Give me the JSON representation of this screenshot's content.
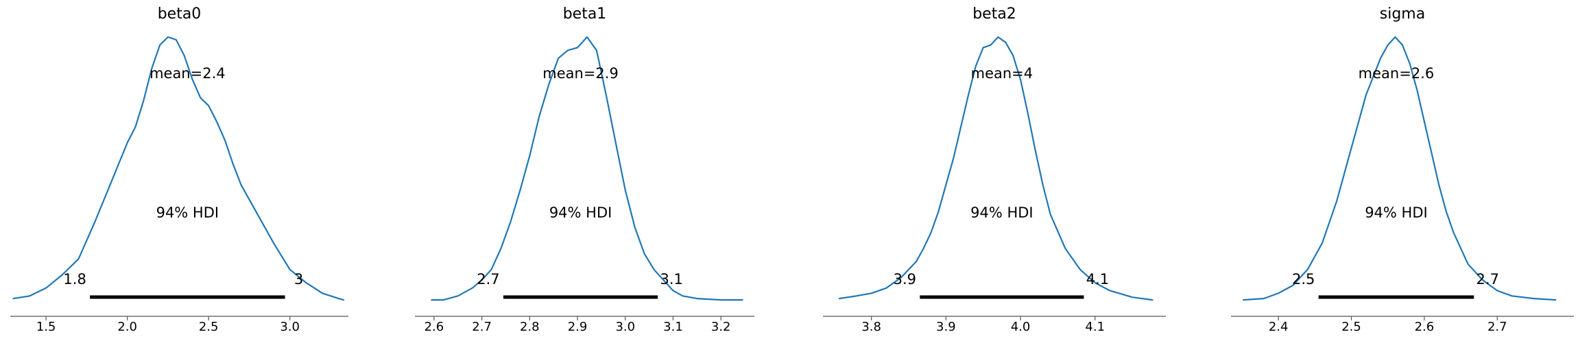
{
  "figure": {
    "hdi_label": "94% HDI"
  },
  "colors": {
    "kde_line": "#1f77b4",
    "hdi_bar": "#000000",
    "axis": "#555555",
    "text": "#000000"
  },
  "chart_data": [
    {
      "type": "line",
      "title": "beta0",
      "xlim": [
        1.28,
        3.36
      ],
      "xticks": [
        1.5,
        2.0,
        2.5,
        3.0
      ],
      "xtick_labels": [
        "1.5",
        "2.0",
        "2.5",
        "3.0"
      ],
      "mean_label": "mean=2.4",
      "hdi": {
        "label": "94% HDI",
        "low": 1.77,
        "high": 2.97,
        "low_label": "1.8",
        "high_label": "3"
      },
      "density": {
        "x": [
          1.3,
          1.4,
          1.5,
          1.6,
          1.7,
          1.8,
          1.9,
          2.0,
          2.05,
          2.1,
          2.15,
          2.2,
          2.25,
          2.3,
          2.35,
          2.4,
          2.45,
          2.5,
          2.55,
          2.6,
          2.65,
          2.7,
          2.8,
          2.9,
          3.0,
          3.1,
          3.2,
          3.3,
          3.33
        ],
        "y": [
          0.01,
          0.02,
          0.05,
          0.1,
          0.16,
          0.3,
          0.45,
          0.6,
          0.66,
          0.76,
          0.88,
          0.97,
          1.0,
          0.99,
          0.93,
          0.84,
          0.77,
          0.74,
          0.68,
          0.61,
          0.52,
          0.44,
          0.33,
          0.22,
          0.12,
          0.07,
          0.03,
          0.01,
          0.005
        ]
      }
    },
    {
      "type": "line",
      "title": "beta1",
      "xlim": [
        2.56,
        3.27
      ],
      "xticks": [
        2.6,
        2.7,
        2.8,
        2.9,
        3.0,
        3.1,
        3.2
      ],
      "xtick_labels": [
        "2.6",
        "2.7",
        "2.8",
        "2.9",
        "3.0",
        "3.1",
        "3.2"
      ],
      "mean_label": "mean=2.9",
      "hdi": {
        "label": "94% HDI",
        "low": 2.745,
        "high": 3.068,
        "low_label": "2.7",
        "high_label": "3.1"
      },
      "density": {
        "x": [
          2.595,
          2.62,
          2.65,
          2.68,
          2.7,
          2.72,
          2.74,
          2.76,
          2.78,
          2.8,
          2.82,
          2.84,
          2.86,
          2.88,
          2.9,
          2.92,
          2.94,
          2.96,
          2.98,
          3.0,
          3.02,
          3.04,
          3.06,
          3.08,
          3.1,
          3.12,
          3.15,
          3.2,
          3.245
        ],
        "y": [
          0.005,
          0.005,
          0.02,
          0.05,
          0.08,
          0.12,
          0.2,
          0.3,
          0.42,
          0.55,
          0.7,
          0.82,
          0.92,
          0.95,
          0.96,
          1.0,
          0.95,
          0.78,
          0.6,
          0.42,
          0.28,
          0.18,
          0.12,
          0.08,
          0.04,
          0.02,
          0.01,
          0.005,
          0.005
        ]
      }
    },
    {
      "type": "line",
      "title": "beta2",
      "xlim": [
        3.735,
        4.195
      ],
      "xticks": [
        3.8,
        3.9,
        4.0,
        4.1
      ],
      "xtick_labels": [
        "3.8",
        "3.9",
        "4.0",
        "4.1"
      ],
      "mean_label": "mean=4",
      "hdi": {
        "label": "94% HDI",
        "low": 3.865,
        "high": 4.085,
        "low_label": "3.9",
        "high_label": "4.1"
      },
      "density": {
        "x": [
          3.757,
          3.78,
          3.8,
          3.82,
          3.84,
          3.86,
          3.87,
          3.88,
          3.89,
          3.9,
          3.91,
          3.92,
          3.93,
          3.94,
          3.95,
          3.96,
          3.97,
          3.98,
          3.99,
          4.0,
          4.01,
          4.02,
          4.03,
          4.04,
          4.06,
          4.08,
          4.1,
          4.12,
          4.15,
          4.177
        ],
        "y": [
          0.01,
          0.02,
          0.03,
          0.05,
          0.09,
          0.15,
          0.2,
          0.26,
          0.34,
          0.44,
          0.54,
          0.66,
          0.78,
          0.89,
          0.96,
          0.97,
          1.0,
          0.98,
          0.93,
          0.84,
          0.71,
          0.57,
          0.44,
          0.33,
          0.2,
          0.12,
          0.07,
          0.04,
          0.015,
          0.005
        ]
      }
    },
    {
      "type": "line",
      "title": "sigma",
      "xlim": [
        2.335,
        2.805
      ],
      "xticks": [
        2.4,
        2.5,
        2.6,
        2.7
      ],
      "xtick_labels": [
        "2.4",
        "2.5",
        "2.6",
        "2.7"
      ],
      "mean_label": "mean=2.6",
      "hdi": {
        "label": "94% HDI",
        "low": 2.455,
        "high": 2.668,
        "low_label": "2.5",
        "high_label": "2.7"
      },
      "density": {
        "x": [
          2.352,
          2.38,
          2.4,
          2.42,
          2.44,
          2.46,
          2.48,
          2.49,
          2.5,
          2.51,
          2.52,
          2.53,
          2.54,
          2.55,
          2.56,
          2.57,
          2.58,
          2.59,
          2.6,
          2.61,
          2.62,
          2.63,
          2.64,
          2.66,
          2.68,
          2.7,
          2.72,
          2.75,
          2.78
        ],
        "y": [
          0.005,
          0.01,
          0.03,
          0.06,
          0.12,
          0.22,
          0.38,
          0.48,
          0.58,
          0.68,
          0.78,
          0.85,
          0.92,
          0.97,
          1.0,
          0.97,
          0.9,
          0.8,
          0.68,
          0.56,
          0.44,
          0.34,
          0.26,
          0.14,
          0.08,
          0.04,
          0.02,
          0.01,
          0.005
        ]
      }
    }
  ]
}
